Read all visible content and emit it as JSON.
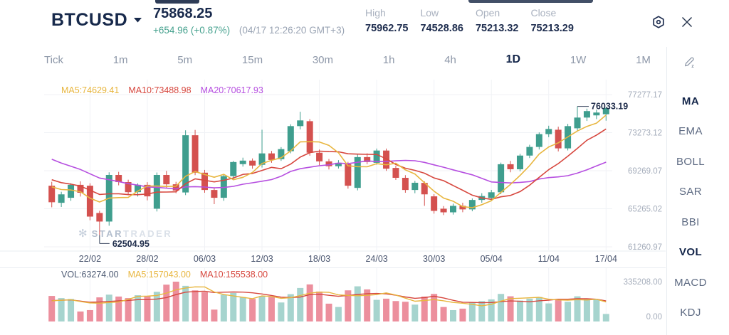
{
  "header": {
    "symbol": "BTCUSD",
    "price": "75868.25",
    "change": "+654.96 (+0.87%)",
    "timestamp": "(04/17 12:26:20 GMT+3)",
    "stats": [
      {
        "label": "High",
        "value": "75962.75"
      },
      {
        "label": "Low",
        "value": "74528.86"
      },
      {
        "label": "Open",
        "value": "75213.32"
      },
      {
        "label": "Close",
        "value": "75213.29"
      }
    ]
  },
  "timeframes": {
    "items": [
      {
        "label": "Tick",
        "active": false
      },
      {
        "label": "1m",
        "active": false
      },
      {
        "label": "5m",
        "active": false
      },
      {
        "label": "15m",
        "active": false
      },
      {
        "label": "30m",
        "active": false
      },
      {
        "label": "1h",
        "active": false
      },
      {
        "label": "4h",
        "active": false
      },
      {
        "label": "1D",
        "active": true
      },
      {
        "label": "1W",
        "active": false
      },
      {
        "label": "1M",
        "active": false
      }
    ]
  },
  "indicators": {
    "items": [
      {
        "label": "MA",
        "active": true
      },
      {
        "label": "EMA",
        "active": false
      },
      {
        "label": "BOLL",
        "active": false
      },
      {
        "label": "SAR",
        "active": false
      },
      {
        "label": "BBI",
        "active": false
      },
      {
        "label": "VOL",
        "active": true
      },
      {
        "label": "MACD",
        "active": false
      },
      {
        "label": "KDJ",
        "active": false
      }
    ]
  },
  "legend": {
    "price_items": [
      {
        "text": "MA5:74629.41",
        "color": "#e8b63f"
      },
      {
        "text": "MA10:73488.98",
        "color": "#d7483f"
      },
      {
        "text": "MA20:70617.93",
        "color": "#b64fe0"
      }
    ],
    "volume_items": [
      {
        "text": "VOL:63274.00",
        "color": "#4d5a73"
      },
      {
        "text": "MA5:157043.00",
        "color": "#e8b63f"
      },
      {
        "text": "MA10:155538.00",
        "color": "#d7483f"
      }
    ]
  },
  "watermark": {
    "icon": "snowflake",
    "text_strong": "STAR",
    "text_light": "TRADER"
  },
  "chart_data": {
    "type": "candlestick",
    "title": "BTCUSD 1D candlestick with MA5/MA10/MA20 and volume",
    "price_axis_labels": [
      "77277.17",
      "73273.12",
      "69269.07",
      "65265.02",
      "61260.97"
    ],
    "grid_prices": [
      77277.17,
      73273.12,
      69269.07,
      65265.02,
      61260.97
    ],
    "volume_axis_labels": [
      "335208.00",
      "0.00"
    ],
    "volume_axis_max": 335208,
    "tick_labels": [
      "22/02",
      "28/02",
      "06/03",
      "12/03",
      "18/03",
      "24/03",
      "30/03",
      "05/04",
      "11/04",
      "17/04"
    ],
    "tick_indices": [
      4,
      10,
      16,
      22,
      28,
      34,
      40,
      46,
      52,
      58
    ],
    "candles": [
      [
        67690,
        68100,
        65420,
        65950,
        215000
      ],
      [
        65890,
        67050,
        65450,
        66780,
        197000
      ],
      [
        66420,
        67950,
        66100,
        67780,
        190000
      ],
      [
        67780,
        68150,
        66550,
        66950,
        84000
      ],
      [
        67690,
        67950,
        64050,
        64440,
        96000
      ],
      [
        64820,
        65050,
        62504.95,
        63920,
        203000
      ],
      [
        63920,
        69100,
        63480,
        68820,
        226000
      ],
      [
        68820,
        69150,
        67730,
        68070,
        210000
      ],
      [
        68070,
        68320,
        66680,
        67010,
        197000
      ],
      [
        67010,
        67940,
        66550,
        67780,
        221000
      ],
      [
        67780,
        68060,
        66150,
        66570,
        215000
      ],
      [
        65270,
        69080,
        64980,
        68820,
        250000
      ],
      [
        68820,
        69250,
        67480,
        67840,
        310000
      ],
      [
        67840,
        68100,
        66900,
        67180,
        335208
      ],
      [
        66980,
        73520,
        66700,
        73000,
        300000
      ],
      [
        73000,
        73560,
        68800,
        69060,
        262000
      ],
      [
        69060,
        69350,
        66950,
        67240,
        246000
      ],
      [
        67240,
        67500,
        65750,
        66420,
        100000
      ],
      [
        66420,
        68900,
        66100,
        68700,
        225000
      ],
      [
        68700,
        70300,
        68400,
        70180,
        240000
      ],
      [
        69960,
        70640,
        69700,
        70330,
        205000
      ],
      [
        70330,
        70560,
        69480,
        69810,
        190000
      ],
      [
        69890,
        73580,
        69600,
        71090,
        214000
      ],
      [
        71090,
        71350,
        70100,
        70400,
        206000
      ],
      [
        70480,
        71750,
        70300,
        71540,
        160000
      ],
      [
        71320,
        74150,
        71100,
        73960,
        230000
      ],
      [
        73960,
        75470,
        73620,
        74560,
        282000
      ],
      [
        74480,
        74700,
        70850,
        71160,
        312000
      ],
      [
        71160,
        71500,
        69850,
        70250,
        252000
      ],
      [
        70250,
        70500,
        69400,
        69740,
        150000
      ],
      [
        69740,
        70380,
        69500,
        70100,
        122000
      ],
      [
        69960,
        70200,
        67380,
        67690,
        262000
      ],
      [
        67460,
        71000,
        67200,
        70700,
        296000
      ],
      [
        70700,
        71100,
        69950,
        70180,
        270000
      ],
      [
        70100,
        71600,
        69900,
        71390,
        182000
      ],
      [
        71390,
        71600,
        69250,
        69480,
        192000
      ],
      [
        69560,
        69800,
        68300,
        68520,
        172000
      ],
      [
        68520,
        68800,
        66950,
        67240,
        166000
      ],
      [
        67240,
        68200,
        66900,
        68000,
        142000
      ],
      [
        67990,
        68150,
        65570,
        66780,
        210000
      ],
      [
        66570,
        66800,
        64750,
        65040,
        232000
      ],
      [
        65270,
        65550,
        64600,
        64890,
        122000
      ],
      [
        64890,
        65800,
        64650,
        65570,
        96000
      ],
      [
        65570,
        65900,
        64900,
        65200,
        108000
      ],
      [
        65200,
        66350,
        65000,
        66190,
        162000
      ],
      [
        66190,
        66900,
        65900,
        66600,
        172000
      ],
      [
        66400,
        67250,
        66100,
        67000,
        186000
      ],
      [
        67000,
        70120,
        66800,
        69950,
        232000
      ],
      [
        69950,
        70300,
        69100,
        69420,
        212000
      ],
      [
        69420,
        71050,
        69200,
        70860,
        176000
      ],
      [
        70860,
        72000,
        70600,
        71770,
        192000
      ],
      [
        71770,
        73300,
        71500,
        73120,
        206000
      ],
      [
        73120,
        74000,
        72800,
        73660,
        152000
      ],
      [
        73580,
        73900,
        71300,
        71620,
        182000
      ],
      [
        71620,
        74200,
        71400,
        73960,
        166000
      ],
      [
        73730,
        76033.19,
        73500,
        74860,
        212000
      ],
      [
        74860,
        75800,
        74500,
        75540,
        192000
      ],
      [
        75090,
        75700,
        74700,
        75390,
        186000
      ],
      [
        75213.32,
        75962.75,
        74528.86,
        75868.25,
        63274
      ]
    ],
    "ma_windows": [
      5,
      10,
      20
    ],
    "ma_seed_closes": [
      75400,
      74900,
      74400,
      73900,
      73400,
      72900,
      72400,
      71900,
      71400,
      70900,
      70300,
      69800,
      69400,
      69000,
      68700,
      68400,
      68200,
      68000,
      67900,
      67800
    ],
    "vol_ma_windows": [
      5,
      10
    ],
    "vol_ma_seed": [
      150000,
      160000,
      170000,
      180000,
      190000,
      185000,
      175000,
      165000,
      160000,
      155000
    ],
    "callouts": {
      "low": {
        "index": 5,
        "text": "62504.95"
      },
      "high": {
        "index": 55,
        "text": "76033.19"
      }
    },
    "colors": {
      "up": "#3f9e8e",
      "down": "#d4514f",
      "vol_up": "#a6d4ce",
      "vol_down": "#ec8f9d",
      "ma5": "#e8b63f",
      "ma10": "#d7483f",
      "ma20": "#b64fe0",
      "grid": "#f0f2f6",
      "separator": "#eaedf2",
      "axis_text": "#a6aebc",
      "date_text": "#49546e",
      "callout": "#39465f"
    }
  }
}
